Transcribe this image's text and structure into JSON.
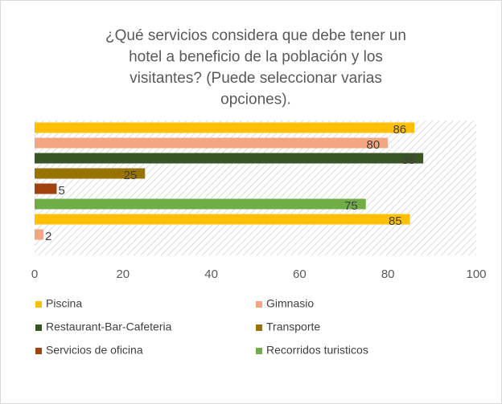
{
  "chart_data": {
    "type": "bar",
    "orientation": "horizontal",
    "title": [
      "¿Qué servicios considera que debe tener un",
      "hotel a beneficio de la población y los",
      "visitantes? (Puede seleccionar varias",
      "opciones)."
    ],
    "values": [
      86,
      80,
      88,
      25,
      5,
      75,
      85,
      2
    ],
    "colors": [
      "#ffc000",
      "#f4a582",
      "#375623",
      "#997300",
      "#a0410e",
      "#70ad47",
      "#ffc000",
      "#f4a582"
    ],
    "legend": [
      {
        "name": "Piscina",
        "color": "#ffc000"
      },
      {
        "name": "Gimnasio",
        "color": "#f4a582"
      },
      {
        "name": "Restaurant-Bar-Cafeteria",
        "color": "#375623"
      },
      {
        "name": "Transporte",
        "color": "#997300"
      },
      {
        "name": "Servicios de oficina",
        "color": "#a0410e"
      },
      {
        "name": "Recorridos turisticos",
        "color": "#70ad47"
      }
    ],
    "xlim": [
      0,
      100
    ],
    "xticks": [
      0,
      20,
      40,
      60,
      80,
      100
    ],
    "grid": false
  }
}
